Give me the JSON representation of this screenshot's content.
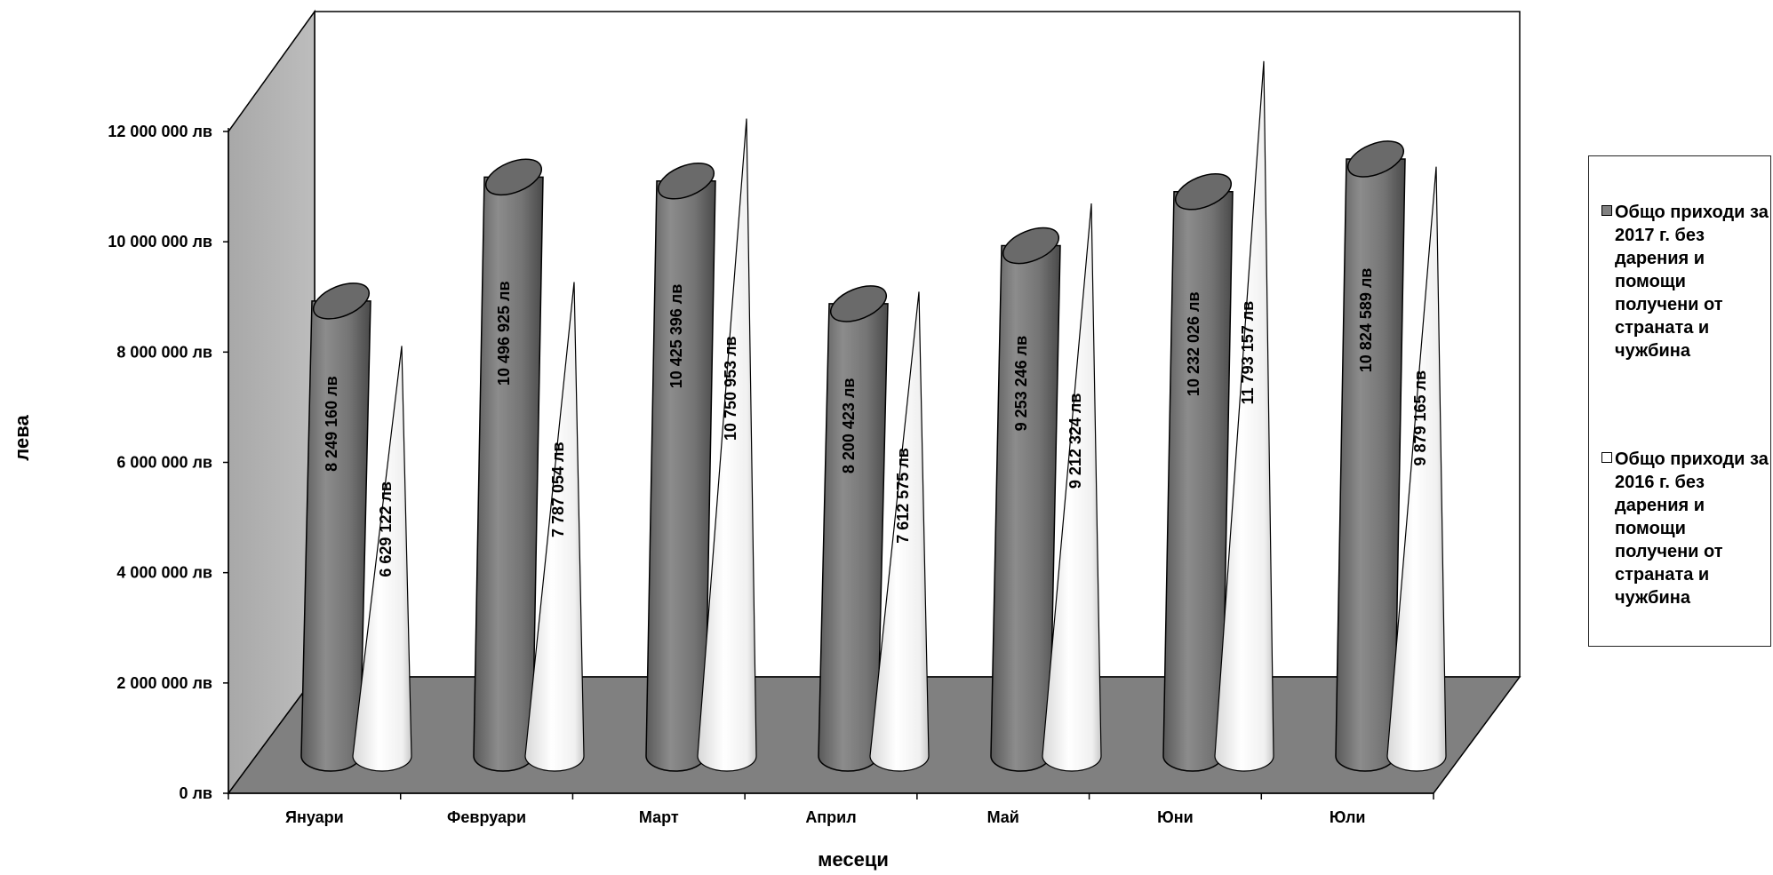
{
  "chart_data": {
    "type": "bar",
    "categories": [
      "Януари",
      "Февруари",
      "Март",
      "Април",
      "Май",
      "Юни",
      "Юли"
    ],
    "series": [
      {
        "name": "Общо приходи за 2017 г. без дарения и помощи получени от страната и чужбина",
        "values": [
          8249160,
          10496925,
          10425396,
          8200423,
          9253246,
          10232026,
          10824589
        ],
        "labels": [
          "8 249 160 лв",
          "10 496 925 лв",
          "10 425 396 лв",
          "8 200 423 лв",
          "9 253 246 лв",
          "10 232 026 лв",
          "10 824 589 лв"
        ],
        "color": "#808080"
      },
      {
        "name": "Общо приходи за 2016 г. без дарения и помощи получени от страната и чужбина",
        "values": [
          6629122,
          7787054,
          10750953,
          7612575,
          9212324,
          11793157,
          9879165
        ],
        "labels": [
          "6 629 122 лв",
          "7 787 054 лв",
          "10 750 953 лв",
          "7 612 575 лв",
          "9 212 324 лв",
          "11 793 157 лв",
          "9 879 165 лв"
        ],
        "color": "#ffffff"
      }
    ],
    "ylim": [
      0,
      12000000
    ],
    "yticks": [
      0,
      2000000,
      4000000,
      6000000,
      8000000,
      10000000,
      12000000
    ],
    "ytick_labels": [
      "0 лв",
      "2 000 000 лв",
      "4 000 000 лв",
      "6 000 000 лв",
      "8 000 000 лв",
      "10 000 000 лв",
      "12 000 000 лв"
    ],
    "xlabel": "месеци",
    "ylabel": "лева",
    "legend_position": "right",
    "grid": false,
    "style": "3d-cylinder-and-cone",
    "wall_color": "#c0c0c0",
    "floor_color": "#808080"
  }
}
